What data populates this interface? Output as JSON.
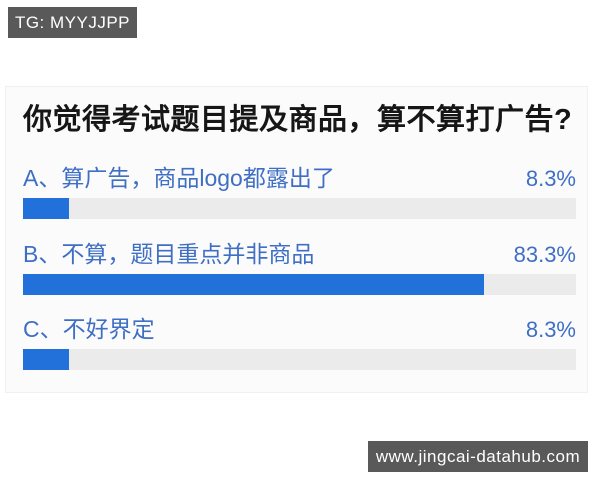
{
  "watermarks": {
    "top": "TG: MYYJJPP",
    "bottom": "www.jingcai-datahub.com"
  },
  "poll": {
    "title": "你觉得考试题目提及商品，算不算打广告?",
    "options": [
      {
        "label": "A、算广告，商品logo都露出了",
        "percent_label": "8.3%",
        "percent": 8.3
      },
      {
        "label": "B、不算，题目重点并非商品",
        "percent_label": "83.3%",
        "percent": 83.3
      },
      {
        "label": "C、不好界定",
        "percent_label": "8.3%",
        "percent": 8.3
      }
    ]
  },
  "colors": {
    "bar_fill": "#2271da",
    "bar_track": "#ebebeb",
    "option_text": "#3f6fc4",
    "badge_bg": "#595959",
    "badge_text": "#ffffff",
    "title_text": "#161616",
    "panel_bg": "#fbfbfb"
  }
}
